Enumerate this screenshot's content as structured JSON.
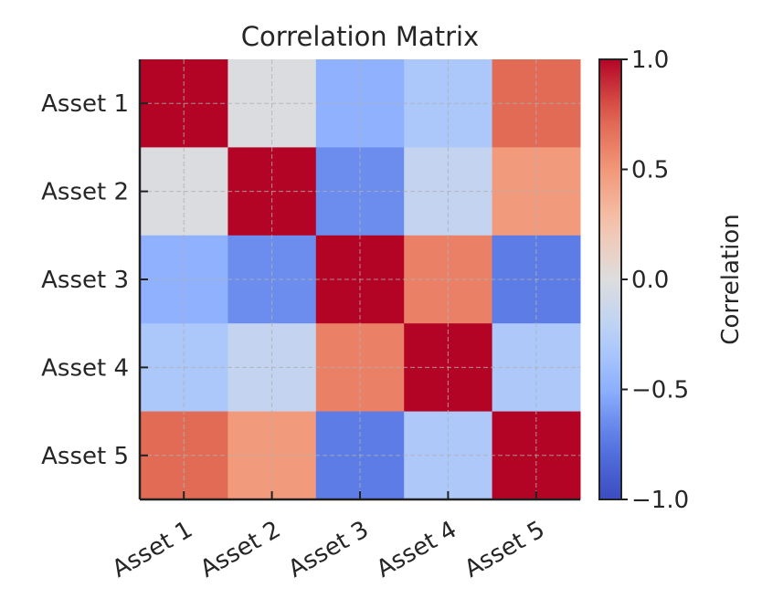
{
  "chart_data": {
    "type": "heatmap",
    "title": "Correlation Matrix",
    "xlabels": [
      "Asset 1",
      "Asset 2",
      "Asset 3",
      "Asset 4",
      "Asset 5"
    ],
    "ylabels": [
      "Asset 1",
      "Asset 2",
      "Asset 3",
      "Asset 4",
      "Asset 5"
    ],
    "values": [
      [
        1.0,
        -0.02,
        -0.49,
        -0.32,
        0.7
      ],
      [
        -0.02,
        1.0,
        -0.65,
        -0.17,
        0.48
      ],
      [
        -0.49,
        -0.65,
        1.0,
        0.6,
        -0.72
      ],
      [
        -0.32,
        -0.17,
        0.6,
        1.0,
        -0.31
      ],
      [
        0.7,
        0.48,
        -0.72,
        -0.31,
        1.0
      ]
    ],
    "colormap": "coolwarm",
    "vmin": -1.0,
    "vmax": 1.0,
    "colorbar": {
      "label": "Correlation",
      "ticks": [
        "1.0",
        "0.5",
        "0.0",
        "−0.5",
        "−1.0"
      ],
      "tick_values": [
        1.0,
        0.5,
        0.0,
        -0.5,
        -1.0
      ]
    },
    "grid": true
  }
}
